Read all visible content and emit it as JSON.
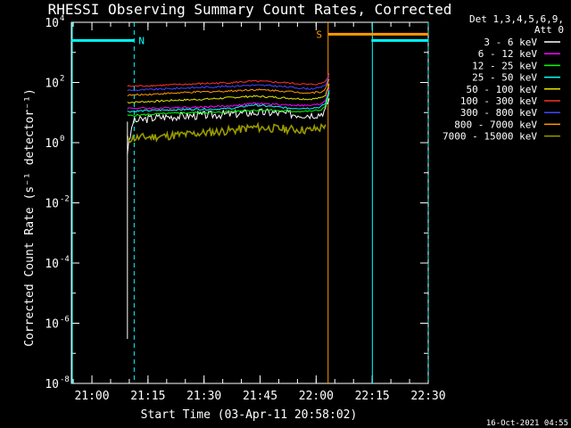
{
  "chart_data": {
    "type": "line",
    "title": "RHESSI Observing Summary Count Rates, Corrected",
    "xlabel": "Start Time (03-Apr-11 20:58:02)",
    "ylabel": "Corrected Count Rate (s⁻¹ detector⁻¹)",
    "y_scale": "log",
    "ylim": [
      1e-08,
      10000.0
    ],
    "x_unit": "minutes after 20:58:02",
    "x_range_minutes": [
      -3.5,
      92.0
    ],
    "x_ticks": [
      {
        "label": "21:00",
        "min": 2
      },
      {
        "label": "21:15",
        "min": 17
      },
      {
        "label": "21:30",
        "min": 32
      },
      {
        "label": "21:45",
        "min": 47
      },
      {
        "label": "22:00",
        "min": 62
      },
      {
        "label": "22:15",
        "min": 77
      },
      {
        "label": "22:30",
        "min": 92
      }
    ],
    "y_ticks": [
      {
        "exp": 4,
        "label_base": "10",
        "label_exp": "4"
      },
      {
        "exp": 2,
        "label_base": "10",
        "label_exp": "2"
      },
      {
        "exp": 0,
        "label_base": "10",
        "label_exp": "0"
      },
      {
        "exp": -2,
        "label_base": "10",
        "label_exp": "-2"
      },
      {
        "exp": -4,
        "label_base": "10",
        "label_exp": "-4"
      },
      {
        "exp": -6,
        "label_base": "10",
        "label_exp": "-6"
      },
      {
        "exp": -8,
        "label_base": "10",
        "label_exp": "-8"
      }
    ],
    "legend": {
      "header_line1": "Det 1,3,4,5,6,9,",
      "header_line2": "Att 0",
      "placement": "top-right, outside plot"
    },
    "series": [
      {
        "name": "3 - 6 keV",
        "color": "#ffffff",
        "x": [
          11.5,
          13,
          16,
          20,
          25,
          30,
          35,
          40,
          45,
          50,
          55,
          60,
          63,
          64.5,
          65.5
        ],
        "y": [
          0.5,
          5,
          6,
          7,
          7.5,
          8,
          8.5,
          9,
          10,
          10,
          9,
          8.5,
          9,
          12,
          30
        ]
      },
      {
        "name": "6 - 12 keV",
        "color": "#ff00ff",
        "x": [
          11.5,
          13,
          16,
          20,
          25,
          30,
          35,
          40,
          45,
          50,
          55,
          60,
          63,
          64.5,
          65.5
        ],
        "y": [
          14,
          14,
          14,
          14,
          15,
          15,
          16,
          17,
          20,
          19,
          18,
          17,
          19,
          25,
          70
        ]
      },
      {
        "name": "12 - 25 keV",
        "color": "#00ff00",
        "x": [
          11.5,
          13,
          16,
          20,
          25,
          30,
          35,
          40,
          45,
          50,
          55,
          60,
          63,
          64.5,
          65.5
        ],
        "y": [
          8,
          8,
          8.5,
          9,
          9.5,
          10,
          10,
          11,
          12,
          12,
          11,
          11,
          12,
          16,
          45
        ]
      },
      {
        "name": "25 - 50 keV",
        "color": "#00ffff",
        "x": [
          11.5,
          13,
          16,
          20,
          25,
          30,
          35,
          40,
          45,
          50,
          55,
          60,
          63,
          64.5,
          65.5
        ],
        "y": [
          11,
          11,
          11.5,
          12,
          12.5,
          13,
          13,
          14,
          18,
          16,
          14,
          14,
          15,
          20,
          55
        ]
      },
      {
        "name": "50 - 100 keV",
        "color": "#e6e600",
        "x": [
          11.5,
          13,
          16,
          20,
          25,
          30,
          35,
          40,
          45,
          50,
          55,
          60,
          63,
          64.5,
          65.5
        ],
        "y": [
          22,
          22,
          23,
          24,
          26,
          27,
          29,
          32,
          35,
          33,
          30,
          28,
          30,
          38,
          90
        ]
      },
      {
        "name": "100 - 300 keV",
        "color": "#ff3030",
        "x": [
          11.5,
          13,
          16,
          20,
          25,
          30,
          35,
          40,
          45,
          50,
          55,
          60,
          63,
          64.5,
          65.5
        ],
        "y": [
          75,
          75,
          78,
          80,
          85,
          90,
          95,
          100,
          110,
          105,
          95,
          85,
          90,
          110,
          200
        ]
      },
      {
        "name": "300 - 800 keV",
        "color": "#4444ff",
        "x": [
          11.5,
          13,
          16,
          20,
          25,
          30,
          35,
          40,
          45,
          50,
          55,
          60,
          63,
          64.5,
          65.5
        ],
        "y": [
          55,
          55,
          57,
          60,
          64,
          68,
          72,
          76,
          82,
          78,
          70,
          62,
          66,
          85,
          160
        ]
      },
      {
        "name": "800 - 7000 keV",
        "color": "#ff9900",
        "x": [
          11.5,
          13,
          16,
          20,
          25,
          30,
          35,
          40,
          45,
          50,
          55,
          60,
          63,
          64.5,
          65.5
        ],
        "y": [
          38,
          38,
          40,
          42,
          45,
          48,
          50,
          53,
          58,
          55,
          50,
          45,
          48,
          60,
          130
        ]
      },
      {
        "name": "7000 - 15000 keV",
        "color": "#999900",
        "x": [
          11.5,
          13,
          16,
          20,
          25,
          30,
          35,
          40,
          45,
          50,
          55,
          60,
          63,
          64.5
        ],
        "y": [
          1.3,
          1.4,
          1.5,
          1.6,
          1.8,
          2.0,
          2.3,
          2.6,
          3.2,
          3.0,
          2.8,
          2.6,
          3.0,
          4.0
        ]
      }
    ],
    "markers": {
      "night_bars": [
        {
          "x_start": -3.5,
          "x_end": 13.3,
          "y": 2500
        },
        {
          "x_start": 76.8,
          "x_end": 92.0,
          "y": 2500
        }
      ],
      "night_lines_solid": [
        -3.5,
        76.8
      ],
      "night_lines_dashed": [
        13.3,
        92.0
      ],
      "night_label": {
        "text": "N",
        "x": 14.5,
        "y": 2500
      },
      "saa_bar": {
        "x_start": 65.2,
        "x_end": 92.0,
        "y": 4000
      },
      "saa_line": 65.2,
      "saa_label": {
        "text": "S",
        "x": 62.0,
        "y": 4000
      },
      "colors": {
        "night": "#00ffff",
        "saa": "#ff9900"
      }
    },
    "grid": false
  },
  "footer": {
    "timestamp": "16-Oct-2021 04:55"
  }
}
